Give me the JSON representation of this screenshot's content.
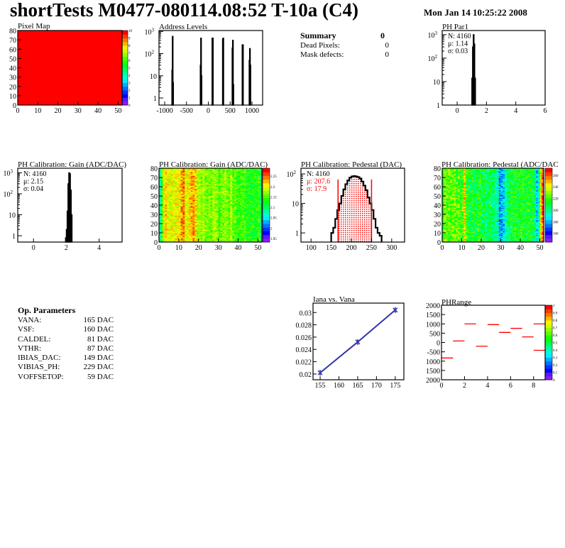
{
  "header": {
    "title": "shortTests M0477-080114.08:52 T-10a (C4)",
    "date": "Mon Jan 14 10:25:22 2008"
  },
  "summary": {
    "title": "Summary",
    "value": "0",
    "rows": [
      {
        "label": "Dead Pixels:",
        "value": "0"
      },
      {
        "label": "Mask defects:",
        "value": "0"
      }
    ]
  },
  "op_parameters": {
    "title": "Op. Parameters",
    "rows": [
      {
        "label": "VANA:",
        "value": "165 DAC"
      },
      {
        "label": "VSF:",
        "value": "160 DAC"
      },
      {
        "label": "CALDEL:",
        "value": "81 DAC"
      },
      {
        "label": "VTHR:",
        "value": "87 DAC"
      },
      {
        "label": "IBIAS_DAC:",
        "value": "149 DAC"
      },
      {
        "label": "VIBIAS_PH:",
        "value": "229 DAC"
      },
      {
        "label": "VOFFSETOP:",
        "value": "59 DAC"
      }
    ]
  },
  "colors": {
    "hist": "#000000",
    "fit": "#ff0000",
    "graph": "#3333aa",
    "frame": "#000000"
  },
  "chart_data": [
    {
      "id": "pixel-map",
      "type": "heatmap",
      "title": "Pixel Map",
      "xlim": [
        0,
        52
      ],
      "ylim": [
        0,
        80
      ],
      "zlim": [
        0,
        10
      ],
      "xticks": [
        "0",
        "10",
        "20",
        "30",
        "40",
        "50"
      ],
      "yticks": [
        "0",
        "10",
        "20",
        "30",
        "40",
        "50",
        "60",
        "70",
        "80"
      ],
      "zticks": [
        "0",
        "1",
        "2",
        "3",
        "4",
        "5",
        "6",
        "7",
        "8",
        "9",
        "10"
      ],
      "uniform_value": 10
    },
    {
      "id": "address-levels",
      "type": "bar",
      "title": "Address Levels",
      "xlim": [
        -1130,
        1244
      ],
      "ylim": [
        0.48,
        1100
      ],
      "log_y": true,
      "xticks": [
        "-1000",
        "-500",
        "0",
        "500",
        "1000"
      ],
      "bin_width": 10,
      "bins": [
        [
          -835,
          18
        ],
        [
          -825,
          600
        ],
        [
          -815,
          5
        ],
        [
          -185,
          30
        ],
        [
          -175,
          500
        ],
        [
          -165,
          10
        ],
        [
          85,
          500
        ],
        [
          95,
          500
        ],
        [
          325,
          450
        ],
        [
          335,
          500
        ],
        [
          545,
          180
        ],
        [
          555,
          400
        ],
        [
          565,
          4
        ],
        [
          775,
          250
        ],
        [
          785,
          250
        ],
        [
          935,
          50
        ],
        [
          945,
          170
        ],
        [
          955,
          30
        ]
      ]
    },
    {
      "id": "ph-par1",
      "type": "bar",
      "title": "PH Par1",
      "xlim": [
        -1.02,
        6
      ],
      "ylim": [
        1,
        1500
      ],
      "log_y": true,
      "xticks": [
        "0",
        "2",
        "4",
        "6"
      ],
      "bin_width": 0.05,
      "bins": [
        [
          1.0,
          14
        ],
        [
          1.05,
          300
        ],
        [
          1.1,
          1000
        ],
        [
          1.15,
          400
        ],
        [
          1.2,
          14
        ]
      ],
      "stats": [
        "N: 4160",
        "μ: 1.14",
        "σ: 0.03"
      ]
    },
    {
      "id": "gain-hist",
      "type": "bar",
      "title": "PH Calibration: Gain (ADC/DAC)",
      "xlim": [
        -0.96,
        5.4
      ],
      "ylim": [
        0.5,
        1650
      ],
      "log_y": true,
      "xticks": [
        "0",
        "2",
        "4"
      ],
      "bin_width": 0.05,
      "bins": [
        [
          1.95,
          0.8
        ],
        [
          2.0,
          2
        ],
        [
          2.05,
          15
        ],
        [
          2.1,
          300
        ],
        [
          2.15,
          1000
        ],
        [
          2.2,
          900
        ],
        [
          2.25,
          150
        ],
        [
          2.3,
          10
        ]
      ],
      "stats": [
        "N: 4160",
        "μ: 2.15",
        "σ: 0.04"
      ]
    },
    {
      "id": "gain-map",
      "type": "heatmap",
      "title": "PH Calibration: Gain (ADC/DAC)",
      "xlim": [
        0,
        52
      ],
      "ylim": [
        0,
        80
      ],
      "zlim": [
        1.933,
        2.288
      ],
      "xticks": [
        "0",
        "10",
        "20",
        "30",
        "40",
        "50"
      ],
      "yticks": [
        "0",
        "10",
        "20",
        "30",
        "40",
        "50",
        "60",
        "70",
        "80"
      ],
      "zticks": [
        "1.95",
        "2",
        "2.05",
        "2.1",
        "2.15",
        "2.2",
        "2.25"
      ],
      "column_means": [
        2.08,
        2.15,
        2.2,
        2.21,
        2.2,
        2.19,
        2.2,
        2.19,
        2.2,
        2.2,
        2.21,
        2.24,
        2.24,
        2.19,
        2.2,
        2.21,
        2.23,
        2.24,
        2.21,
        2.18,
        2.18,
        2.17,
        2.18,
        2.17,
        2.16,
        2.17,
        2.16,
        2.18,
        2.17,
        2.16,
        2.15,
        2.16,
        2.17,
        2.18,
        2.16,
        2.15,
        2.18,
        2.16,
        2.15,
        2.15,
        2.14,
        2.15,
        2.14,
        2.15,
        2.13,
        2.14,
        2.13,
        2.14,
        2.13,
        2.13,
        2.14,
        2.1
      ]
    },
    {
      "id": "pedestal-hist",
      "type": "bar",
      "title": "PH Calibration: Pedestal (DAC)",
      "xlim": [
        75,
        332
      ],
      "ylim": [
        0.49,
        156
      ],
      "log_y": true,
      "xticks": [
        "100",
        "150",
        "200",
        "250",
        "300"
      ],
      "bin_width": 5,
      "bins": [
        [
          150,
          1
        ],
        [
          155,
          1.5
        ],
        [
          160,
          3
        ],
        [
          165,
          6
        ],
        [
          170,
          10
        ],
        [
          175,
          18
        ],
        [
          180,
          30
        ],
        [
          185,
          45
        ],
        [
          190,
          60
        ],
        [
          195,
          75
        ],
        [
          200,
          82
        ],
        [
          205,
          85
        ],
        [
          210,
          82
        ],
        [
          215,
          78
        ],
        [
          220,
          70
        ],
        [
          225,
          55
        ],
        [
          230,
          40
        ],
        [
          235,
          28
        ],
        [
          240,
          16
        ],
        [
          245,
          10
        ],
        [
          250,
          6
        ],
        [
          255,
          3
        ],
        [
          260,
          1.5
        ],
        [
          265,
          1
        ],
        [
          270,
          0.8
        ]
      ],
      "fit_range": [
        167,
        250
      ],
      "stats": [
        "N: 4160",
        "μ: 207.6",
        "σ: 17.9"
      ]
    },
    {
      "id": "pedestal-map",
      "type": "heatmap",
      "title": "PH Calibration: Pedestal (ADC/DAC",
      "xlim": [
        0,
        52
      ],
      "ylim": [
        0,
        80
      ],
      "zlim": [
        145,
        272
      ],
      "xticks": [
        "0",
        "10",
        "20",
        "30",
        "40",
        "50"
      ],
      "yticks": [
        "0",
        "10",
        "20",
        "30",
        "40",
        "50",
        "60",
        "70",
        "80"
      ],
      "zticks": [
        "160",
        "180",
        "200",
        "220",
        "240",
        "260"
      ],
      "column_means": [
        215,
        230,
        225,
        228,
        222,
        226,
        224,
        220,
        222,
        218,
        225,
        245,
        220,
        212,
        210,
        214,
        212,
        210,
        215,
        212,
        208,
        210,
        205,
        208,
        210,
        205,
        200,
        200,
        195,
        180,
        178,
        185,
        200,
        205,
        210,
        212,
        210,
        215,
        213,
        212,
        218,
        215,
        212,
        210,
        214,
        212,
        210,
        205,
        188,
        195,
        235,
        258
      ]
    },
    {
      "id": "iana-vs-vana",
      "type": "line",
      "title": "Iana vs. Vana",
      "xlim": [
        153.1,
        177.3
      ],
      "ylim": [
        0.01906,
        0.03153
      ],
      "xticks": [
        "155",
        "160",
        "165",
        "170",
        "175"
      ],
      "yticks": [
        "0.02",
        "0.022",
        "0.024",
        "0.026",
        "0.028",
        "0.03"
      ],
      "x": [
        155,
        165,
        175
      ],
      "y": [
        0.0202,
        0.0252,
        0.0304
      ]
    },
    {
      "id": "phrange",
      "type": "heatmap",
      "title": "PHRange",
      "xlim": [
        0,
        9
      ],
      "ylim": [
        -2000,
        2000
      ],
      "zlim": [
        0,
        1
      ],
      "xticks": [
        "0",
        "2",
        "4",
        "6",
        "8"
      ],
      "yticks": [
        "2000",
        "1500",
        "1000",
        "500",
        "0",
        "-500",
        "1000",
        "1500",
        "2000"
      ],
      "zticks": [
        "0",
        "0.1",
        "0.2",
        "0.3",
        "0.4",
        "0.5",
        "0.6",
        "0.7",
        "0.8",
        "0.9",
        "1"
      ],
      "segments": [
        [
          0,
          -830
        ],
        [
          1,
          80
        ],
        [
          2,
          1000
        ],
        [
          3,
          -200
        ],
        [
          4,
          960
        ],
        [
          5,
          540
        ],
        [
          6,
          760
        ],
        [
          7,
          300
        ],
        [
          8,
          1000
        ],
        [
          8,
          -420
        ]
      ]
    }
  ]
}
